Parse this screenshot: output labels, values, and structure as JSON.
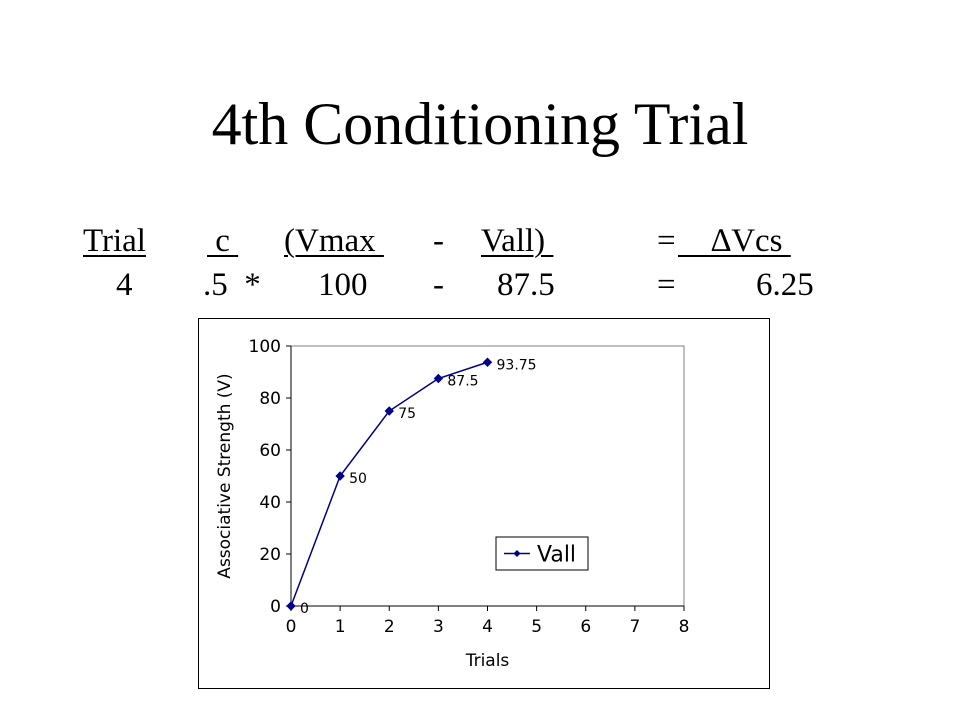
{
  "slide": {
    "title": "4th Conditioning Trial"
  },
  "equation": {
    "header": {
      "trial": "Trial",
      "c": " c ",
      "open_vmax": "(Vmax ",
      "minus": "-",
      "vall": "Vall) ",
      "equals": "=",
      "delta_vcs": "    ∆Vcs "
    },
    "values": {
      "trial": "4",
      "c_times": ".5  *",
      "vmax": "100",
      "minus": "-",
      "vall": "87.5",
      "equals": "=",
      "delta_vcs": "6.25"
    }
  },
  "chart_data": {
    "type": "line",
    "title": "",
    "xlabel": "Trials",
    "ylabel": "Associative Strength (V)",
    "xlim": [
      0,
      8
    ],
    "ylim": [
      0,
      100
    ],
    "x_ticks": [
      "0",
      "1",
      "2",
      "3",
      "4",
      "5",
      "6",
      "7",
      "8"
    ],
    "y_ticks": [
      "0",
      "20",
      "40",
      "60",
      "80",
      "100"
    ],
    "grid": false,
    "legend_position": "right-middle",
    "series": [
      {
        "name": "Vall",
        "color": "#00008b",
        "marker": "diamond",
        "x": [
          0,
          1,
          2,
          3,
          4
        ],
        "y": [
          0,
          50,
          75,
          87.5,
          93.75
        ],
        "data_labels": [
          "0",
          "50",
          "75",
          "87.5",
          "93.75"
        ]
      }
    ]
  }
}
